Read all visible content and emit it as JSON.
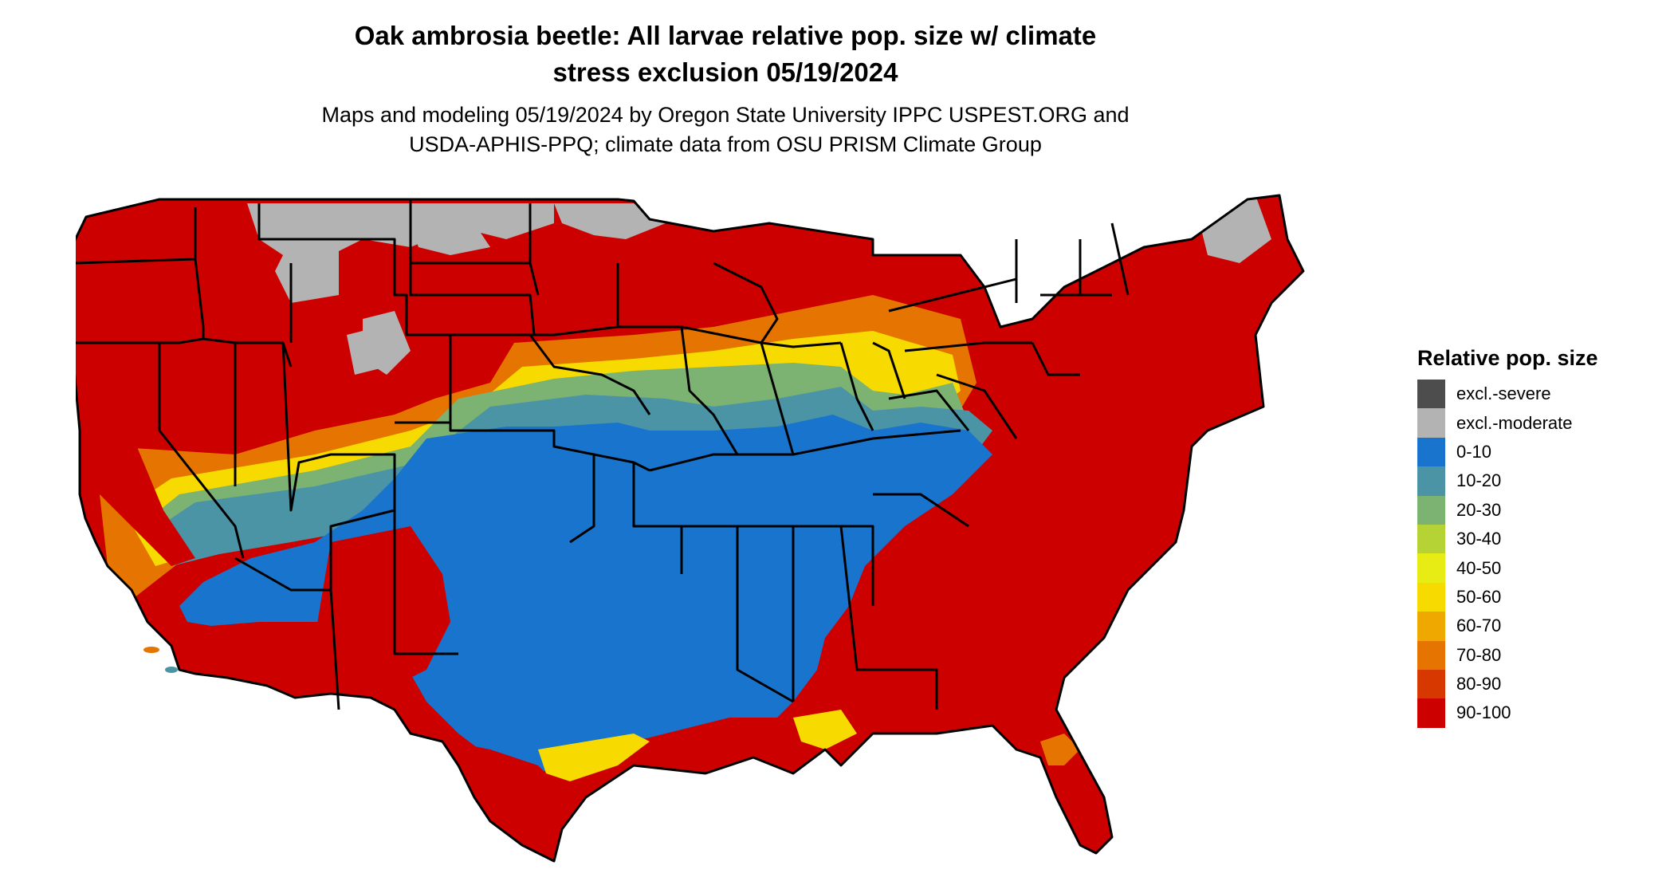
{
  "title_line1": "Oak ambrosia beetle: All larvae relative pop. size w/ climate",
  "title_line2": "stress exclusion 05/19/2024",
  "subtitle_line1": "Maps and modeling 05/19/2024 by Oregon State University IPPC USPEST.ORG and",
  "subtitle_line2": "USDA-APHIS-PPQ; climate data from OSU PRISM Climate Group",
  "legend": {
    "title": "Relative pop. size",
    "items": [
      {
        "label": "excl.-severe",
        "color": "#4d4d4d"
      },
      {
        "label": "excl.-moderate",
        "color": "#b3b3b3"
      },
      {
        "label": "0-10",
        "color": "#1874cd"
      },
      {
        "label": "10-20",
        "color": "#4a94a6"
      },
      {
        "label": "20-30",
        "color": "#7cb272"
      },
      {
        "label": "30-40",
        "color": "#b5d335"
      },
      {
        "label": "40-50",
        "color": "#e6ec14"
      },
      {
        "label": "50-60",
        "color": "#f7da00"
      },
      {
        "label": "60-70",
        "color": "#eea800"
      },
      {
        "label": "70-80",
        "color": "#e67400"
      },
      {
        "label": "80-90",
        "color": "#d63800"
      },
      {
        "label": "90-100",
        "color": "#cd0000"
      }
    ]
  }
}
